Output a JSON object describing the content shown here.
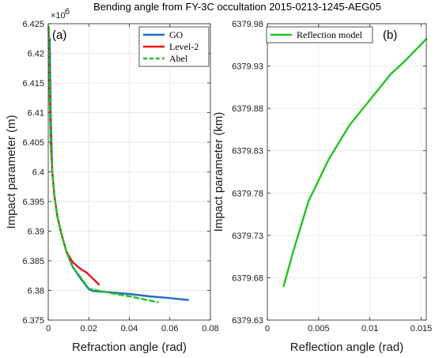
{
  "figure": {
    "title": "Bending angle from FY-3C occultation 2015-0213-1245-AEG05"
  },
  "chart_data": [
    {
      "type": "line",
      "panel_label": "(a)",
      "xlabel": "Refraction angle (rad)",
      "ylabel": "Impact parameter (m)",
      "y_exponent_label": "×10",
      "y_exponent_power": "6",
      "xlim": [
        0,
        0.08
      ],
      "ylim": [
        6.375,
        6.425
      ],
      "xticks": [
        0,
        0.02,
        0.04,
        0.06,
        0.08
      ],
      "xtick_labels": [
        "0",
        "0.02",
        "0.04",
        "0.06",
        "0.08"
      ],
      "yticks": [
        6.375,
        6.38,
        6.385,
        6.39,
        6.395,
        6.4,
        6.405,
        6.41,
        6.415,
        6.42,
        6.425
      ],
      "ytick_labels": [
        "6.375",
        "6.38",
        "6.385",
        "6.39",
        "6.395",
        "6.4",
        "6.405",
        "6.41",
        "6.415",
        "6.42",
        "6.425"
      ],
      "grid": true,
      "legend_position": "top-right",
      "series": [
        {
          "name": "GO",
          "color": "#1f6fbf",
          "dash": "solid",
          "x": [
            0.0007,
            0.0012,
            0.002,
            0.003,
            0.0045,
            0.0065,
            0.009,
            0.012,
            0.016,
            0.02,
            0.022,
            0.03,
            0.04,
            0.05,
            0.06,
            0.066,
            0.069
          ],
          "y": [
            6.4225,
            6.41,
            6.4,
            6.396,
            6.3925,
            6.3895,
            6.3865,
            6.384,
            6.382,
            6.3802,
            6.3799,
            6.3797,
            6.3794,
            6.379,
            6.3787,
            6.3785,
            6.3784
          ]
        },
        {
          "name": "Level-2",
          "color": "#e8141c",
          "dash": "solid",
          "x": [
            0.0002,
            0.0006,
            0.0012,
            0.002,
            0.003,
            0.0045,
            0.0065,
            0.009,
            0.012,
            0.016,
            0.019,
            0.022,
            0.025
          ],
          "y": [
            6.4245,
            6.415,
            6.405,
            6.4,
            6.396,
            6.3925,
            6.3895,
            6.3865,
            6.3848,
            6.3836,
            6.383,
            6.382,
            6.381
          ]
        },
        {
          "name": "Abel",
          "color": "#22c422",
          "dash": "dashed",
          "x": [
            0.0002,
            0.0006,
            0.0012,
            0.002,
            0.003,
            0.0045,
            0.0065,
            0.009,
            0.012,
            0.016,
            0.02,
            0.03,
            0.04,
            0.05,
            0.054
          ],
          "y": [
            6.4245,
            6.415,
            6.405,
            6.4,
            6.396,
            6.3925,
            6.3895,
            6.3865,
            6.384,
            6.3822,
            6.3803,
            6.3796,
            6.379,
            6.3783,
            6.378
          ]
        }
      ]
    },
    {
      "type": "line",
      "panel_label": "(b)",
      "xlabel": "Reflection angle (rad)",
      "ylabel": "Impact parameter (km)",
      "xlim": [
        0,
        0.0155
      ],
      "ylim": [
        6379.63,
        6379.98
      ],
      "xticks": [
        0,
        0.005,
        0.01,
        0.015
      ],
      "xtick_labels": [
        "0",
        "0.005",
        "0.01",
        "0.015"
      ],
      "yticks": [
        6379.63,
        6379.68,
        6379.73,
        6379.78,
        6379.83,
        6379.88,
        6379.93,
        6379.98
      ],
      "ytick_labels": [
        "6379.63",
        "6379.68",
        "6379.73",
        "6379.78",
        "6379.83",
        "6379.88",
        "6379.93",
        "6379.98"
      ],
      "grid": true,
      "legend_position": "top-left",
      "series": [
        {
          "name": "Reflection model",
          "color": "#22c422",
          "dash": "solid",
          "x": [
            0.0016,
            0.0025,
            0.004,
            0.006,
            0.008,
            0.01,
            0.012,
            0.0135,
            0.0155
          ],
          "y": [
            6379.67,
            6379.71,
            6379.77,
            6379.82,
            6379.86,
            6379.89,
            6379.92,
            6379.937,
            6379.962
          ]
        }
      ]
    }
  ]
}
